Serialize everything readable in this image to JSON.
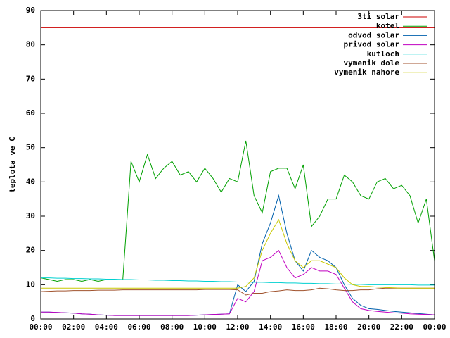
{
  "chart_data": {
    "type": "line",
    "ylabel": "teplota ve C",
    "x": [
      0,
      0.5,
      1,
      1.5,
      2,
      2.5,
      3,
      3.5,
      4,
      4.5,
      5,
      5.5,
      6,
      6.5,
      7,
      7.5,
      8,
      8.5,
      9,
      9.5,
      10,
      10.5,
      11,
      11.5,
      12,
      12.5,
      13,
      13.5,
      14,
      14.5,
      15,
      15.5,
      16,
      16.5,
      17,
      17.5,
      18,
      18.5,
      19,
      19.5,
      20,
      20.5,
      21,
      21.5,
      22,
      22.5,
      23,
      23.5,
      24
    ],
    "xlim": [
      0,
      24
    ],
    "xticks": [
      {
        "value": 0,
        "label": "00:00"
      },
      {
        "value": 2,
        "label": "02:00"
      },
      {
        "value": 4,
        "label": "04:00"
      },
      {
        "value": 6,
        "label": "06:00"
      },
      {
        "value": 8,
        "label": "08:00"
      },
      {
        "value": 10,
        "label": "10:00"
      },
      {
        "value": 12,
        "label": "12:00"
      },
      {
        "value": 14,
        "label": "14:00"
      },
      {
        "value": 16,
        "label": "16:00"
      },
      {
        "value": 18,
        "label": "18:00"
      },
      {
        "value": 20,
        "label": "20:00"
      },
      {
        "value": 22,
        "label": "22:00"
      },
      {
        "value": 24,
        "label": "00:00"
      }
    ],
    "ylim": [
      0,
      90
    ],
    "yticks": [
      0,
      10,
      20,
      30,
      40,
      50,
      60,
      70,
      80,
      90
    ],
    "legend": "top-right",
    "series": [
      {
        "name": "3ti solar",
        "color": "#cc0000",
        "values": [
          85,
          85,
          85,
          85,
          85,
          85,
          85,
          85,
          85,
          85,
          85,
          85,
          85,
          85,
          85,
          85,
          85,
          85,
          85,
          85,
          85,
          85,
          85,
          85,
          85,
          85,
          85,
          85,
          85,
          85,
          85,
          85,
          85,
          85,
          85,
          85,
          85,
          85,
          85,
          85,
          85,
          85,
          85,
          85,
          85,
          85,
          85,
          85,
          85
        ]
      },
      {
        "name": "kotel",
        "color": "#00a000",
        "values": [
          12,
          11.5,
          11,
          11.5,
          11.5,
          11,
          11.5,
          11,
          11.5,
          11.5,
          11.5,
          46,
          40,
          48,
          41,
          44,
          46,
          42,
          43,
          40,
          44,
          41,
          37,
          41,
          40,
          52,
          36,
          31,
          43,
          44,
          44,
          38,
          45,
          27,
          30,
          35,
          35,
          42,
          40,
          36,
          35,
          40,
          41,
          38,
          39,
          36,
          28,
          35,
          17
        ]
      },
      {
        "name": "odvod solar",
        "color": "#0060ad",
        "values": [
          2,
          2,
          1.9,
          1.8,
          1.7,
          1.5,
          1.4,
          1.2,
          1.1,
          1,
          1,
          1,
          1,
          1,
          1,
          1,
          1,
          1,
          1,
          1.1,
          1.2,
          1.3,
          1.4,
          1.5,
          10,
          8,
          11,
          22,
          28,
          36,
          25,
          17,
          14,
          20,
          18,
          17,
          15,
          10,
          6,
          4,
          3,
          2.8,
          2.5,
          2.2,
          2,
          1.8,
          1.6,
          1.4,
          1.2
        ]
      },
      {
        "name": "privod solar",
        "color": "#c000c0",
        "values": [
          2,
          2,
          1.9,
          1.8,
          1.7,
          1.5,
          1.4,
          1.2,
          1.1,
          1,
          1,
          1,
          1,
          1,
          1,
          1,
          1,
          1,
          1,
          1.1,
          1.2,
          1.3,
          1.4,
          1.5,
          6,
          5,
          8,
          17,
          18,
          20,
          15,
          12,
          13,
          15,
          14,
          14,
          13,
          9,
          5,
          3,
          2.5,
          2.2,
          2,
          1.8,
          1.7,
          1.5,
          1.4,
          1.3,
          1.2
        ]
      },
      {
        "name": "kutloch",
        "color": "#00d0d0",
        "values": [
          12,
          12,
          11.9,
          11.9,
          11.8,
          11.8,
          11.7,
          11.7,
          11.6,
          11.6,
          11.5,
          11.5,
          11.4,
          11.4,
          11.3,
          11.3,
          11.2,
          11.2,
          11.1,
          11.1,
          11,
          11,
          10.9,
          10.9,
          10.8,
          10.8,
          10.7,
          10.7,
          10.6,
          10.6,
          10.5,
          10.5,
          10.4,
          10.4,
          10.3,
          10.3,
          10.2,
          10.2,
          10.1,
          10.1,
          10,
          10,
          10,
          10,
          10,
          10,
          9.9,
          9.9,
          9.9
        ]
      },
      {
        "name": "vymenik dole",
        "color": "#a0522d",
        "values": [
          8,
          8.1,
          8.2,
          8.2,
          8.3,
          8.3,
          8.3,
          8.4,
          8.4,
          8.4,
          8.5,
          8.5,
          8.5,
          8.5,
          8.5,
          8.5,
          8.5,
          8.5,
          8.5,
          8.5,
          8.6,
          8.6,
          8.6,
          8.6,
          8.5,
          7,
          7.5,
          7.5,
          8,
          8.2,
          8.5,
          8.3,
          8.3,
          8.5,
          9,
          8.8,
          8.5,
          8.3,
          8.3,
          8.5,
          8.5,
          8.8,
          9,
          9,
          9,
          9,
          9,
          9,
          9
        ]
      },
      {
        "name": "vymenik nahore",
        "color": "#c8c800",
        "values": [
          9,
          9,
          9,
          9,
          9,
          9,
          9,
          9,
          9,
          9,
          9,
          9,
          9,
          9,
          9,
          9,
          9,
          9,
          9,
          9,
          9,
          9,
          9,
          9,
          9,
          9.5,
          12,
          20,
          25,
          29,
          22,
          17,
          15,
          17,
          17,
          16,
          15,
          12,
          10,
          9.5,
          9.5,
          9.3,
          9.2,
          9.1,
          9,
          9,
          9,
          9,
          9
        ]
      }
    ]
  }
}
